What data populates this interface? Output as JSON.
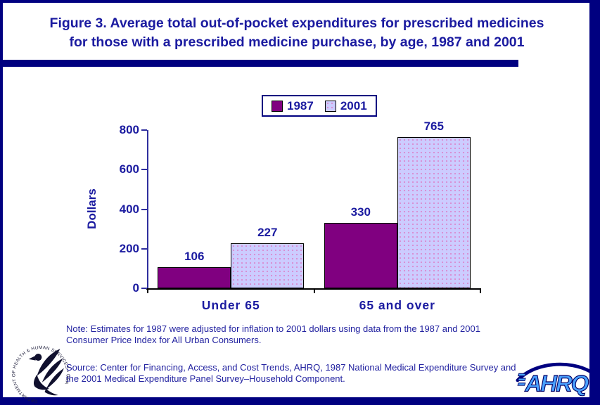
{
  "title": {
    "line1": "Figure 3. Average total out-of-pocket expenditures for prescribed medicines",
    "line2": "for those with a prescribed medicine purchase, by age, 1987 and 2001"
  },
  "chart_data": {
    "type": "bar",
    "categories": [
      "Under 65",
      "65 and over"
    ],
    "series": [
      {
        "name": "1987",
        "values": [
          106,
          330
        ],
        "color": "#800080",
        "pattern": "solid"
      },
      {
        "name": "2001",
        "values": [
          227,
          765
        ],
        "color": "#ccccff",
        "pattern": "dots"
      }
    ],
    "title": "Figure 3. Average total out-of-pocket expenditures for prescribed medicines for those with a prescribed medicine purchase, by age, 1987 and 2001",
    "xlabel": "",
    "ylabel": "Dollars",
    "ylim": [
      0,
      800
    ],
    "yticks": [
      0,
      200,
      400,
      600,
      800
    ],
    "grid": false,
    "legend_position": "top",
    "value_labels": true
  },
  "notes": {
    "note": "Note: Estimates for 1987 were adjusted for inflation to 2001 dollars using data from the 1987 and 2001 Consumer Price Index for All Urban Consumers.",
    "source": "Source: Center for Financing, Access, and Cost Trends, AHRQ, 1987 National Medical Expenditure Survey and the 2001 Medical Expenditure Panel Survey–Household Component."
  },
  "logos": {
    "hhs_seal_text": "DEPARTMENT OF HEALTH & HUMAN SERVICES • USA",
    "ahrq_label": "AHRQ"
  },
  "colors": {
    "border_navy": "#000080",
    "text_navy": "#1b1ba0",
    "bar_1987": "#800080",
    "bar_2001": "#ccccff",
    "bar_2001_dot": "#d98ad0",
    "axis_blue": "#2e2e9e",
    "axis_black": "#000000",
    "ahrq_blue": "#49a1ff"
  }
}
